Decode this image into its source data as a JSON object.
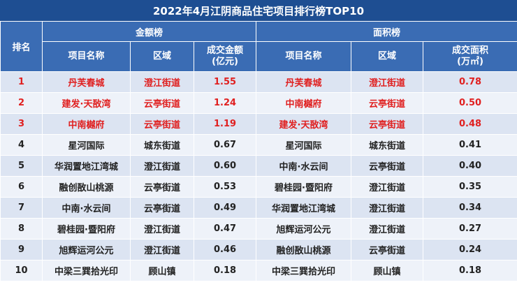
{
  "title": "2022年4月江阴商品住宅项目排行榜TOP10",
  "headers": {
    "rank": "排名",
    "group_amount": "金额榜",
    "group_area": "面积榜",
    "project_name": "项目名称",
    "district": "区域",
    "amount_line1": "成交金额",
    "amount_line2": "(亿元)",
    "area_line1": "成交面积",
    "area_line2": "(万㎡)"
  },
  "rows": [
    {
      "rank": "1",
      "a_name": "丹芙春城",
      "a_district": "澄江街道",
      "a_value": "1.55",
      "b_name": "丹芙春城",
      "b_district": "澄江街道",
      "b_value": "0.78"
    },
    {
      "rank": "2",
      "a_name": "建发·天敔湾",
      "a_district": "云亭街道",
      "a_value": "1.24",
      "b_name": "中南樾府",
      "b_district": "云亭街道",
      "b_value": "0.50"
    },
    {
      "rank": "3",
      "a_name": "中南樾府",
      "a_district": "云亭街道",
      "a_value": "1.19",
      "b_name": "建发·天敔湾",
      "b_district": "云亭街道",
      "b_value": "0.48"
    },
    {
      "rank": "4",
      "a_name": "星河国际",
      "a_district": "城东街道",
      "a_value": "0.67",
      "b_name": "星河国际",
      "b_district": "城东街道",
      "b_value": "0.41"
    },
    {
      "rank": "5",
      "a_name": "华润置地江湾城",
      "a_district": "澄江街道",
      "a_value": "0.60",
      "b_name": "中南·水云间",
      "b_district": "云亭街道",
      "b_value": "0.40"
    },
    {
      "rank": "6",
      "a_name": "融创敔山桃源",
      "a_district": "云亭街道",
      "a_value": "0.53",
      "b_name": "碧桂园·暨阳府",
      "b_district": "澄江街道",
      "b_value": "0.35"
    },
    {
      "rank": "7",
      "a_name": "中南·水云间",
      "a_district": "云亭街道",
      "a_value": "0.49",
      "b_name": "华润置地江湾城",
      "b_district": "澄江街道",
      "b_value": "0.34"
    },
    {
      "rank": "8",
      "a_name": "碧桂园·暨阳府",
      "a_district": "澄江街道",
      "a_value": "0.47",
      "b_name": "旭辉运河公元",
      "b_district": "澄江街道",
      "b_value": "0.27"
    },
    {
      "rank": "9",
      "a_name": "旭辉运河公元",
      "a_district": "澄江街道",
      "a_value": "0.46",
      "b_name": "融创敔山桃源",
      "b_district": "云亭街道",
      "b_value": "0.24"
    },
    {
      "rank": "10",
      "a_name": "中梁三巽拾光印",
      "a_district": "顾山镇",
      "a_value": "0.18",
      "b_name": "中梁三巽拾光印",
      "b_district": "顾山镇",
      "b_value": "0.18"
    }
  ],
  "colors": {
    "header_dark": "#1e4e92",
    "header": "#3a6cb4",
    "row_odd": "#dce4f2",
    "row_even": "#eef2f9",
    "highlight_text": "#e02020"
  }
}
